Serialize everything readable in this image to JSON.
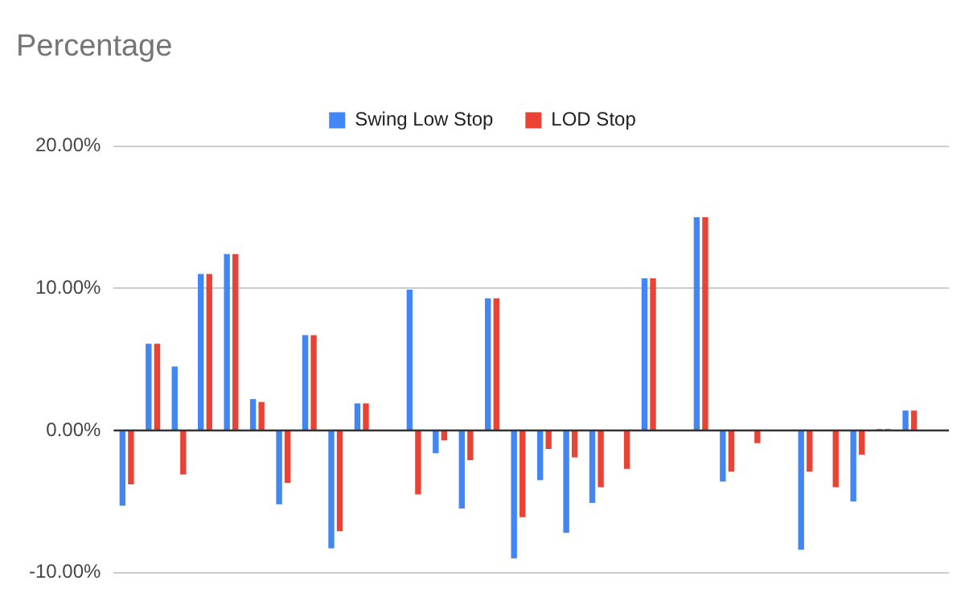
{
  "chart_data": {
    "type": "bar",
    "title": "Percentage",
    "categories": [
      null,
      null,
      null,
      null,
      null,
      null,
      null,
      null,
      null,
      null,
      null,
      null,
      null,
      null,
      null,
      null,
      null,
      null,
      null,
      null,
      null,
      null,
      null,
      null,
      null,
      null,
      null,
      null,
      null,
      null,
      null,
      null
    ],
    "series": [
      {
        "name": "Swing Low Stop",
        "color": "#4285f4",
        "values": [
          -5.3,
          6.1,
          4.5,
          11.0,
          12.4,
          2.2,
          -5.2,
          6.7,
          -8.3,
          1.9,
          null,
          9.9,
          -1.6,
          -5.5,
          9.3,
          -9.0,
          -3.5,
          -7.2,
          -5.1,
          0,
          10.7,
          0,
          15.0,
          -3.6,
          0,
          0,
          -8.4,
          0,
          -5.0,
          0.1,
          1.4,
          0
        ]
      },
      {
        "name": "LOD Stop",
        "color": "#ea4335",
        "values": [
          -3.8,
          6.1,
          -3.1,
          11.0,
          12.4,
          2.0,
          -3.7,
          6.7,
          -7.1,
          1.9,
          null,
          -4.5,
          -0.7,
          -2.1,
          9.3,
          -6.1,
          -1.3,
          -1.9,
          -4.0,
          -2.7,
          10.7,
          0,
          15.0,
          -2.9,
          -0.9,
          0,
          -2.9,
          -4.0,
          -1.7,
          0.1,
          1.4,
          0
        ]
      }
    ],
    "ylim": [
      -10,
      20
    ],
    "yticks": [
      {
        "value": -10,
        "label": "-10.00%"
      },
      {
        "value": 0,
        "label": "0.00%"
      },
      {
        "value": 10,
        "label": "10.00%"
      },
      {
        "value": 20,
        "label": "20.00%"
      }
    ],
    "grid": "y",
    "legend": "top"
  }
}
